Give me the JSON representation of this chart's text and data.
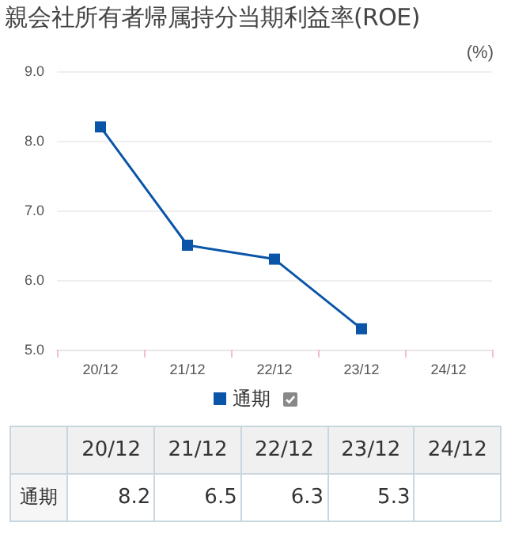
{
  "chart_data": {
    "type": "line",
    "title": "親会社所有者帰属持分当期利益率(ROE)",
    "ylabel": "(%)",
    "categories": [
      "20/12",
      "21/12",
      "22/12",
      "23/12",
      "24/12"
    ],
    "series": [
      {
        "name": "通期",
        "color": "#0b55a8",
        "values": [
          8.2,
          6.5,
          6.3,
          5.3,
          null
        ]
      }
    ],
    "ylim": [
      5,
      9
    ],
    "yticks": [
      {
        "value": 5,
        "label": "5.0"
      },
      {
        "value": 6,
        "label": "6.0"
      },
      {
        "value": 7,
        "label": "7.0"
      },
      {
        "value": 8,
        "label": "8.0"
      },
      {
        "value": 9,
        "label": "9.0"
      }
    ],
    "grid": "y",
    "legend": "bottom",
    "marker": "square",
    "line_style": "solid",
    "data_labels": true
  }
}
